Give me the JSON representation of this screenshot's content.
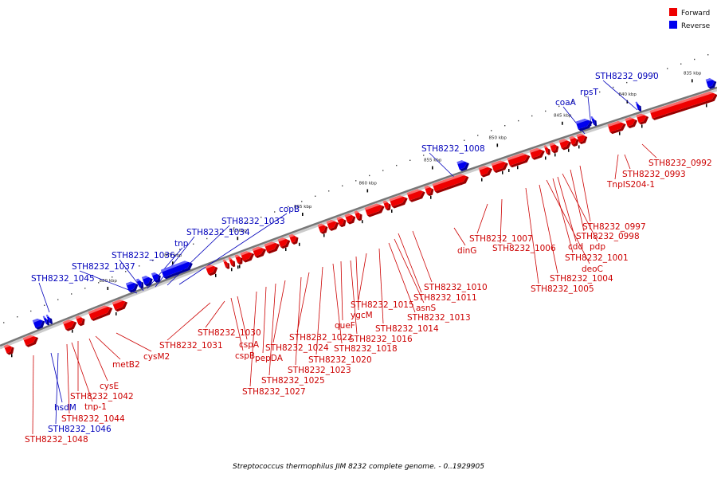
{
  "legend": [
    {
      "label": "Forward",
      "color": "#ee0000"
    },
    {
      "label": "Reverse",
      "color": "#0000ee"
    }
  ],
  "caption": "Streptococcus thermophilus JIM 8232 complete genome. - 0..1929905",
  "colors": {
    "forward": "#ee0000",
    "forward_top": "#ff9a9a",
    "forward_side": "#990000",
    "reverse": "#0000ee",
    "reverse_top": "#8f8fff",
    "reverse_side": "#000099",
    "forward_label": "#cc0000",
    "reverse_label": "#0000bb",
    "backbone": "#777777",
    "backbone_shadow": "#cccccc"
  },
  "ticks": [
    {
      "kbp": 835,
      "label": "835 kbp"
    },
    {
      "kbp": 840,
      "label": "840 kbp"
    },
    {
      "kbp": 845,
      "label": "845 kbp"
    },
    {
      "kbp": 850,
      "label": "850 kbp"
    },
    {
      "kbp": 855,
      "label": "855 kbp"
    },
    {
      "kbp": 860,
      "label": "860 kbp"
    },
    {
      "kbp": 865,
      "label": "865 kbp"
    },
    {
      "kbp": 870,
      "label": "870 kbp"
    },
    {
      "kbp": 875,
      "label": "875 kbp"
    },
    {
      "kbp": 880,
      "label": "880 kbp"
    }
  ],
  "reverse_genes": [
    {
      "label": "STH8232_0990"
    },
    {
      "label": "rpsT"
    },
    {
      "label": "coaA"
    },
    {
      "label": "STH8232_1008"
    },
    {
      "label": "copB"
    },
    {
      "label": "STH8232_1033"
    },
    {
      "label": "STH8232_1034"
    },
    {
      "label": "tnp"
    },
    {
      "label": "STH8232_1036"
    },
    {
      "label": "STH8232_1037"
    },
    {
      "label": "STH8232_1045"
    },
    {
      "label": "hsdM"
    },
    {
      "label": "STH8232_1046"
    }
  ],
  "forward_genes": [
    {
      "label": "STH8232_0992"
    },
    {
      "label": "STH8232_0993"
    },
    {
      "label": "TnpIS204-1"
    },
    {
      "label": "STH8232_0997"
    },
    {
      "label": "STH8232_0998"
    },
    {
      "label": "pdp"
    },
    {
      "label": "cdd"
    },
    {
      "label": "STH8232_1001"
    },
    {
      "label": "deoC"
    },
    {
      "label": "STH8232_1004"
    },
    {
      "label": "STH8232_1005"
    },
    {
      "label": "STH8232_1006"
    },
    {
      "label": "STH8232_1007"
    },
    {
      "label": "dinG"
    },
    {
      "label": "STH8232_1010"
    },
    {
      "label": "STH8232_1011"
    },
    {
      "label": "asnS"
    },
    {
      "label": "STH8232_1013"
    },
    {
      "label": "STH8232_1014"
    },
    {
      "label": "STH8232_1015"
    },
    {
      "label": "ygcM"
    },
    {
      "label": "STH8232_1016"
    },
    {
      "label": "queF"
    },
    {
      "label": "STH8232_1018"
    },
    {
      "label": "STH8232_1020"
    },
    {
      "label": "STH8232_1022"
    },
    {
      "label": "STH8232_1023"
    },
    {
      "label": "STH8232_1024"
    },
    {
      "label": "STH8232_1025"
    },
    {
      "label": "pepDA"
    },
    {
      "label": "STH8232_1027"
    },
    {
      "label": "cspA"
    },
    {
      "label": "cspB"
    },
    {
      "label": "STH8232_1030"
    },
    {
      "label": "STH8232_1031"
    },
    {
      "label": "cysM2"
    },
    {
      "label": "metB2"
    },
    {
      "label": "cysE"
    },
    {
      "label": "STH8232_1042"
    },
    {
      "label": "tnp-1"
    },
    {
      "label": "STH8232_1044"
    },
    {
      "label": "STH8232_1048"
    }
  ]
}
